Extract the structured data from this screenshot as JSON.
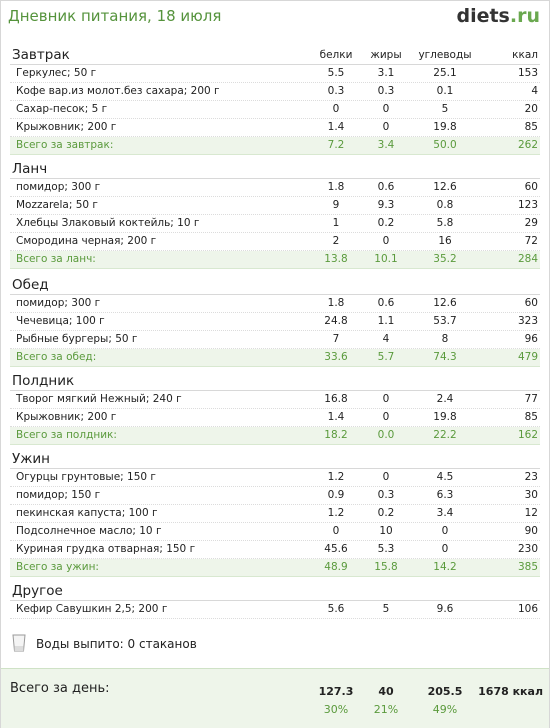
{
  "header": {
    "title": "Дневник питания, 18 июля",
    "logo_main": "diets",
    "logo_dot": ".",
    "logo_tld": "ru"
  },
  "columns": [
    "белки",
    "жиры",
    "углеводы",
    "ккал"
  ],
  "meals": [
    {
      "title": "Завтрак",
      "rows": [
        {
          "name": "Геркулес; 50 г",
          "protein": "5.5",
          "fat": "3.1",
          "carbs": "25.1",
          "kcal": "153"
        },
        {
          "name": "Кофе вар.из молот.без сахара; 200 г",
          "protein": "0.3",
          "fat": "0.3",
          "carbs": "0.1",
          "kcal": "4"
        },
        {
          "name": "Сахар-песок; 5 г",
          "protein": "0",
          "fat": "0",
          "carbs": "5",
          "kcal": "20"
        },
        {
          "name": "Крыжовник; 200 г",
          "protein": "1.4",
          "fat": "0",
          "carbs": "19.8",
          "kcal": "85"
        }
      ],
      "total": {
        "name": "Всего за завтрак:",
        "protein": "7.2",
        "fat": "3.4",
        "carbs": "50.0",
        "kcal": "262"
      }
    },
    {
      "title": "Ланч",
      "rows": [
        {
          "name": "помидор; 300 г",
          "protein": "1.8",
          "fat": "0.6",
          "carbs": "12.6",
          "kcal": "60"
        },
        {
          "name": "Mozzarela; 50 г",
          "protein": "9",
          "fat": "9.3",
          "carbs": "0.8",
          "kcal": "123"
        },
        {
          "name": "Хлебцы Злаковый коктейль; 10 г",
          "protein": "1",
          "fat": "0.2",
          "carbs": "5.8",
          "kcal": "29"
        },
        {
          "name": "Смородина черная; 200 г",
          "protein": "2",
          "fat": "0",
          "carbs": "16",
          "kcal": "72"
        }
      ],
      "total": {
        "name": "Всего за ланч:",
        "protein": "13.8",
        "fat": "10.1",
        "carbs": "35.2",
        "kcal": "284"
      }
    },
    {
      "title": "Обед",
      "rows": [
        {
          "name": "помидор; 300 г",
          "protein": "1.8",
          "fat": "0.6",
          "carbs": "12.6",
          "kcal": "60"
        },
        {
          "name": "Чечевица; 100 г",
          "protein": "24.8",
          "fat": "1.1",
          "carbs": "53.7",
          "kcal": "323"
        },
        {
          "name": "Рыбные бургеры; 50 г",
          "protein": "7",
          "fat": "4",
          "carbs": "8",
          "kcal": "96"
        }
      ],
      "total": {
        "name": "Всего за обед:",
        "protein": "33.6",
        "fat": "5.7",
        "carbs": "74.3",
        "kcal": "479"
      }
    },
    {
      "title": "Полдник",
      "rows": [
        {
          "name": "Творог мягкий Нежный; 240 г",
          "protein": "16.8",
          "fat": "0",
          "carbs": "2.4",
          "kcal": "77"
        },
        {
          "name": "Крыжовник; 200 г",
          "protein": "1.4",
          "fat": "0",
          "carbs": "19.8",
          "kcal": "85"
        }
      ],
      "total": {
        "name": "Всего за полдник:",
        "protein": "18.2",
        "fat": "0.0",
        "carbs": "22.2",
        "kcal": "162"
      }
    },
    {
      "title": "Ужин",
      "rows": [
        {
          "name": "Огурцы грунтовые; 150 г",
          "protein": "1.2",
          "fat": "0",
          "carbs": "4.5",
          "kcal": "23"
        },
        {
          "name": "помидор; 150 г",
          "protein": "0.9",
          "fat": "0.3",
          "carbs": "6.3",
          "kcal": "30"
        },
        {
          "name": "пекинская капуста; 100 г",
          "protein": "1.2",
          "fat": "0.2",
          "carbs": "3.4",
          "kcal": "12"
        },
        {
          "name": "Подсолнечное масло; 10 г",
          "protein": "0",
          "fat": "10",
          "carbs": "0",
          "kcal": "90"
        },
        {
          "name": "Куриная грудка отварная; 150 г",
          "protein": "45.6",
          "fat": "5.3",
          "carbs": "0",
          "kcal": "230"
        }
      ],
      "total": {
        "name": "Всего за ужин:",
        "protein": "48.9",
        "fat": "15.8",
        "carbs": "14.2",
        "kcal": "385"
      }
    },
    {
      "title": "Другое",
      "rows": [
        {
          "name": "Кефир Савушкин 2,5; 200 г",
          "protein": "5.6",
          "fat": "5",
          "carbs": "9.6",
          "kcal": "106"
        }
      ],
      "total": null
    }
  ],
  "water": {
    "text": "Воды выпито: 0 стаканов"
  },
  "day_total": {
    "label": "Всего за день:",
    "protein": "127.3",
    "fat": "40",
    "carbs": "205.5",
    "kcal": "1678 ккал",
    "protein_pct": "30%",
    "fat_pct": "21%",
    "carbs_pct": "49%"
  }
}
